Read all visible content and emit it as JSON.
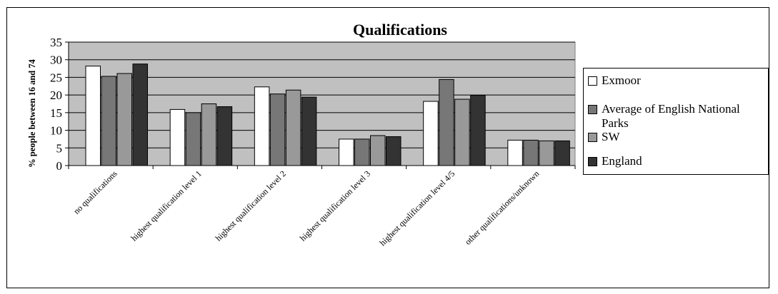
{
  "chart_data": {
    "type": "bar",
    "title": "Qualifications",
    "ylabel": "% people between 16 and 74",
    "xlabel": "",
    "ylim": [
      0,
      35
    ],
    "yticks": [
      "0",
      "5",
      "10",
      "15",
      "20",
      "25",
      "30",
      "35"
    ],
    "grid": true,
    "legend_position": "right",
    "categories": [
      "no qualifications",
      "highest qualification level 1",
      "highest qualification level 2",
      "highest qualification level 3",
      "highest qualification level 4/5",
      "other qualifications/unknown"
    ],
    "series": [
      {
        "name": "Exmoor",
        "color": "#ffffff",
        "values": [
          28.2,
          15.9,
          22.3,
          7.5,
          18.2,
          7.2
        ]
      },
      {
        "name": "Average of English National Parks",
        "color": "#777777",
        "values": [
          25.3,
          15.0,
          20.3,
          7.5,
          24.4,
          7.2
        ]
      },
      {
        "name": "SW",
        "color": "#999999",
        "values": [
          26.1,
          17.5,
          21.4,
          8.5,
          18.8,
          7.0
        ]
      },
      {
        "name": "England",
        "color": "#333333",
        "values": [
          28.8,
          16.7,
          19.4,
          8.2,
          19.9,
          7.0
        ]
      }
    ],
    "plot_background": "#c0c0c0"
  }
}
